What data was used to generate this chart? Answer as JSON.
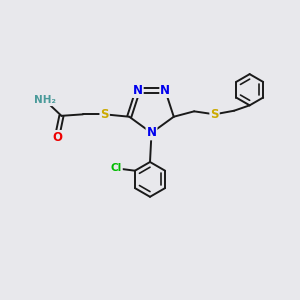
{
  "bg_color": "#e8e8ec",
  "bond_color": "#1a1a1a",
  "colors": {
    "N": "#0000ee",
    "O": "#ee0000",
    "S": "#ccaa00",
    "Cl": "#00bb00",
    "C": "#1a1a1a",
    "H": "#4a9a9a"
  },
  "font_size_atom": 8.5,
  "font_size_small": 7.5,
  "lw": 1.4
}
